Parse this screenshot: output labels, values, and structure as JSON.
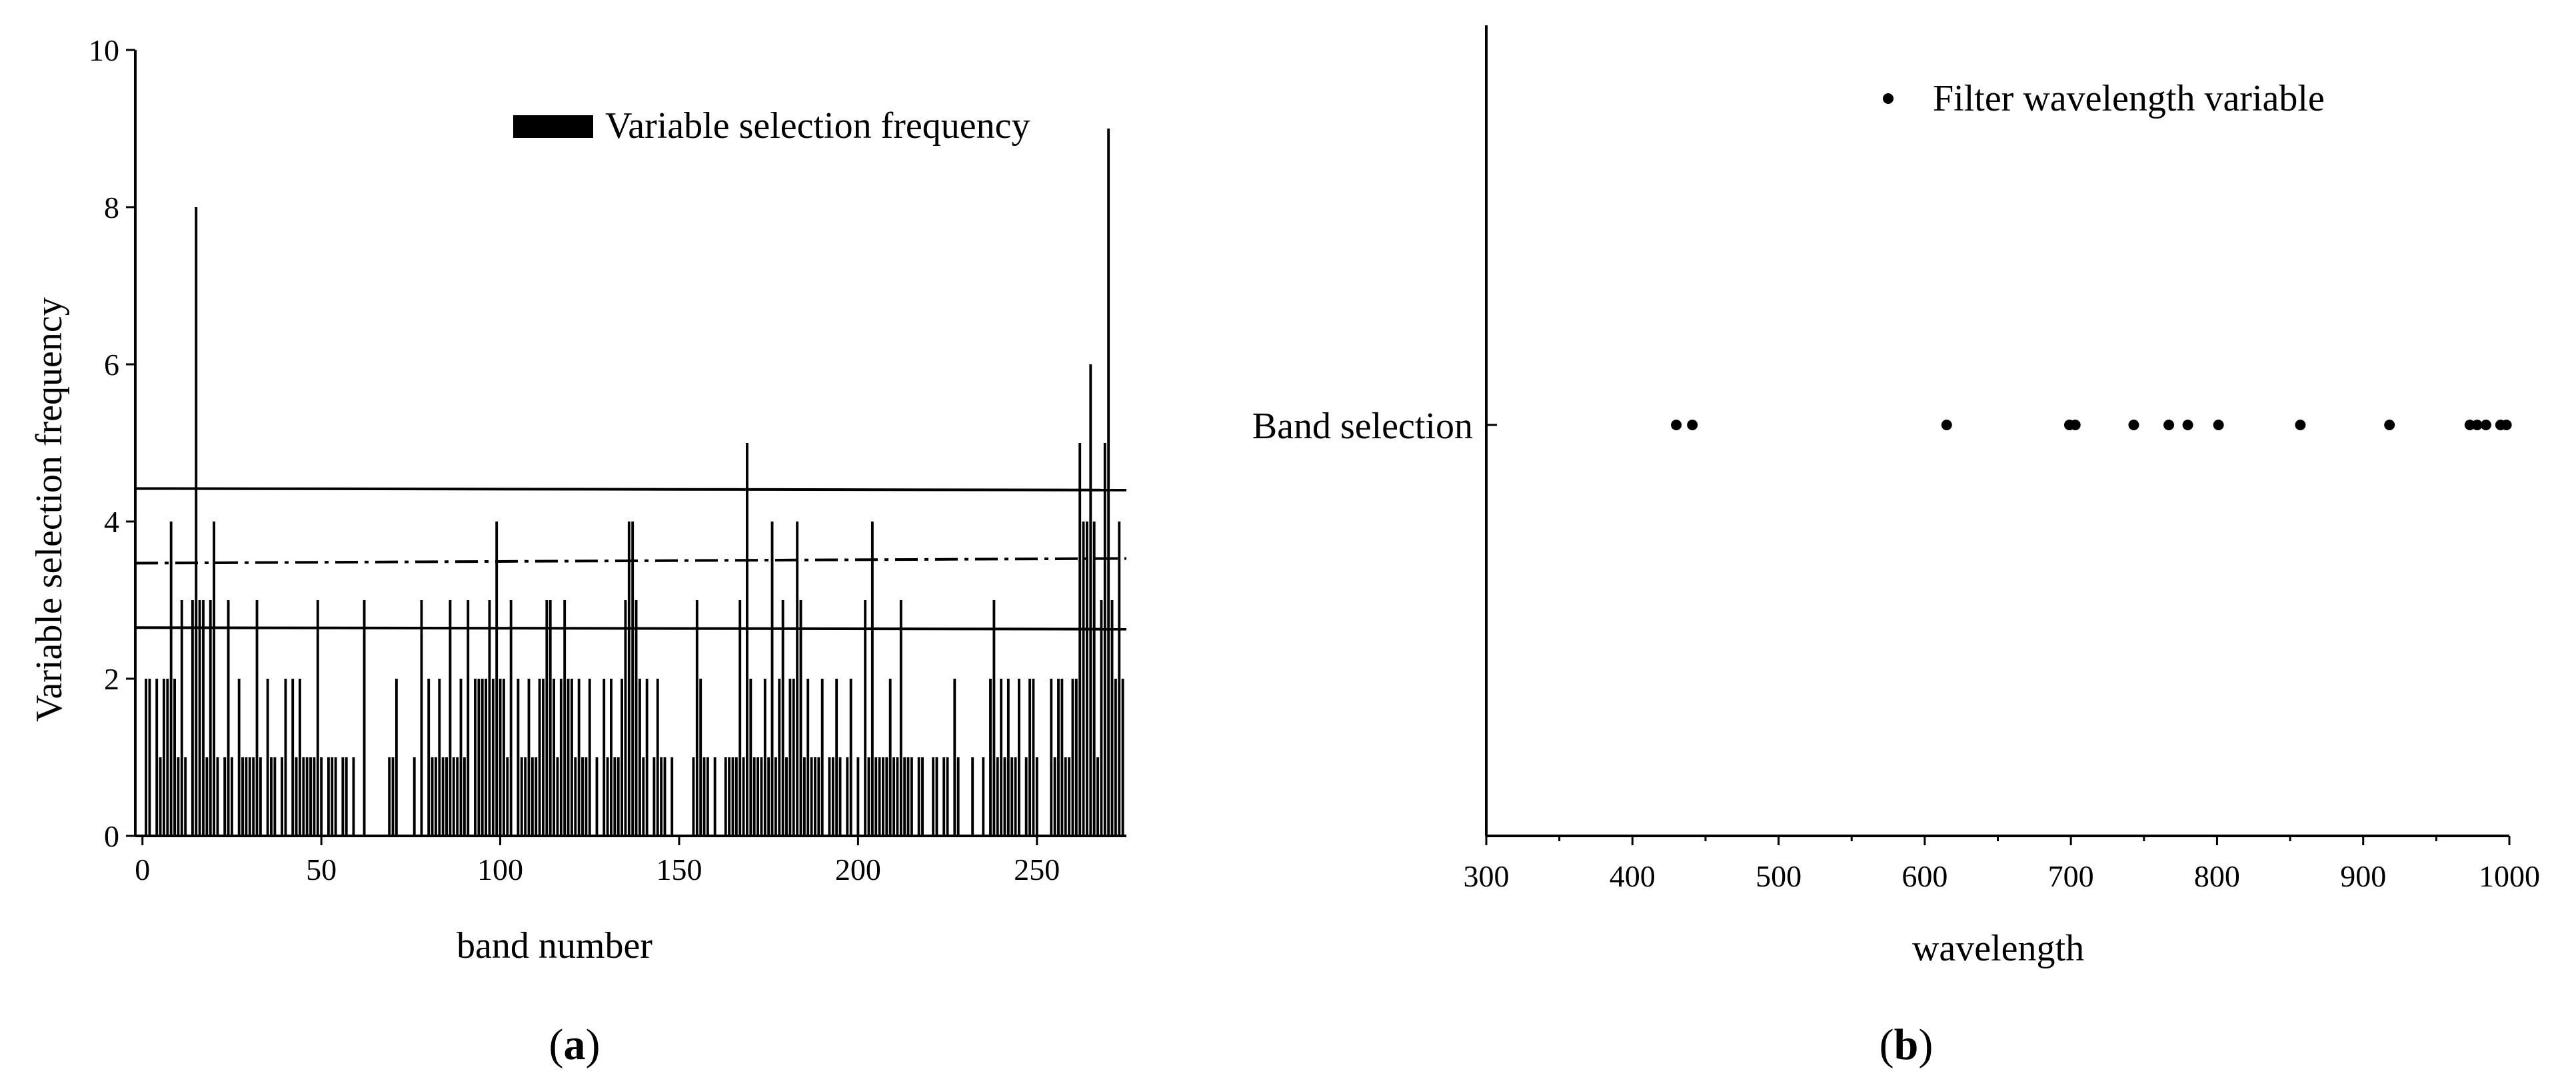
{
  "chart_data": [
    {
      "type": "bar",
      "panel_label": "(a)",
      "panel_letter": "a",
      "xlabel": "band number",
      "ylabel": "Variable selection frequency",
      "legend": "Variable selection frequency",
      "legend_position": "top-right",
      "xlim": [
        -2,
        275
      ],
      "ylim": [
        0,
        10
      ],
      "xticks": [
        0,
        50,
        100,
        150,
        200,
        250
      ],
      "yticks": [
        0,
        2,
        4,
        6,
        8,
        10
      ],
      "values": [
        2,
        2,
        0,
        2,
        1,
        2,
        2,
        4,
        2,
        1,
        3,
        1,
        0,
        3,
        8,
        3,
        3,
        1,
        3,
        4,
        1,
        0,
        1,
        3,
        1,
        0,
        2,
        1,
        1,
        1,
        1,
        3,
        1,
        0,
        2,
        1,
        1,
        0,
        1,
        2,
        0,
        2,
        1,
        2,
        1,
        1,
        1,
        1,
        3,
        1,
        0,
        1,
        1,
        1,
        0,
        1,
        1,
        0,
        1,
        0,
        0,
        3,
        0,
        0,
        0,
        0,
        0,
        0,
        1,
        1,
        2,
        0,
        0,
        0,
        0,
        1,
        0,
        3,
        0,
        2,
        1,
        1,
        2,
        1,
        1,
        3,
        1,
        1,
        2,
        1,
        3,
        0,
        2,
        2,
        2,
        2,
        3,
        2,
        4,
        2,
        2,
        1,
        3,
        0,
        2,
        1,
        1,
        2,
        1,
        1,
        2,
        2,
        3,
        3,
        2,
        1,
        2,
        3,
        2,
        2,
        1,
        2,
        1,
        1,
        2,
        0,
        1,
        0,
        2,
        1,
        2,
        1,
        1,
        2,
        3,
        4,
        4,
        3,
        2,
        1,
        2,
        0,
        1,
        2,
        1,
        1,
        0,
        1,
        0,
        0,
        0,
        0,
        0,
        1,
        3,
        2,
        1,
        1,
        0,
        1,
        0,
        0,
        1,
        1,
        1,
        1,
        3,
        1,
        5,
        2,
        1,
        1,
        1,
        2,
        1,
        4,
        1,
        2,
        3,
        1,
        2,
        2,
        4,
        3,
        1,
        2,
        1,
        1,
        1,
        2,
        0,
        1,
        1,
        2,
        1,
        0,
        1,
        2,
        0,
        1,
        0,
        3,
        1,
        4,
        1,
        1,
        1,
        1,
        2,
        1,
        1,
        3,
        1,
        1,
        1,
        0,
        1,
        1,
        0,
        0,
        1,
        1,
        0,
        1,
        1,
        0,
        2,
        1,
        0,
        0,
        0,
        1,
        0,
        0,
        1,
        0,
        2,
        3,
        1,
        2,
        1,
        2,
        1,
        1,
        2,
        0,
        1,
        2,
        2,
        1,
        0,
        0,
        0,
        2,
        1,
        2,
        2,
        1,
        1,
        2,
        2,
        5,
        4,
        4,
        6,
        4,
        1,
        3,
        5,
        9,
        3,
        2,
        4,
        2
      ],
      "reference_lines": [
        {
          "style": "solid",
          "y": [
            4.42,
            4.4
          ]
        },
        {
          "style": "dashdot",
          "y": [
            3.47,
            3.53
          ]
        },
        {
          "style": "solid",
          "y": [
            2.65,
            2.63
          ]
        }
      ]
    },
    {
      "type": "scatter",
      "panel_label": "(b)",
      "panel_letter": "b",
      "xlabel": "wavelength",
      "ylabel": "",
      "category": "Band selection",
      "legend": "Filter wavelength variable",
      "legend_position": "top-right",
      "xlim": [
        300,
        1000
      ],
      "xticks": [
        300,
        400,
        500,
        600,
        700,
        800,
        900,
        1000
      ],
      "x": [
        430,
        441,
        615,
        699,
        703,
        743,
        767,
        780,
        801,
        857,
        918,
        973,
        978,
        984,
        994,
        998
      ]
    }
  ]
}
